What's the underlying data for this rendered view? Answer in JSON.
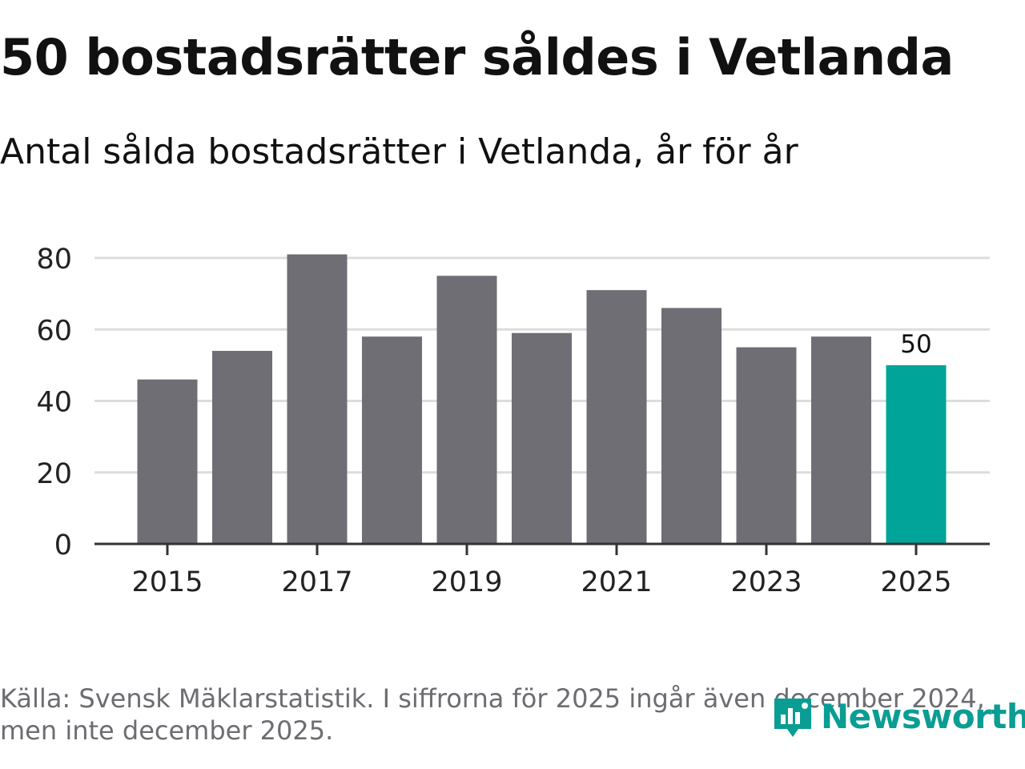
{
  "header": {
    "title": "50 bostadsrätter såldes i Vetlanda",
    "subtitle": "Antal sålda bostadsrätter i Vetlanda, år för år"
  },
  "chart_data": {
    "type": "bar",
    "categories": [
      "2015",
      "2016",
      "2017",
      "2018",
      "2019",
      "2020",
      "2021",
      "2022",
      "2023",
      "2024",
      "2025"
    ],
    "values": [
      46,
      54,
      81,
      58,
      75,
      59,
      71,
      66,
      55,
      58,
      50
    ],
    "x_tick_labels": [
      "2015",
      "2017",
      "2019",
      "2021",
      "2023",
      "2025"
    ],
    "y_ticks": [
      0,
      20,
      40,
      60,
      80
    ],
    "ylim": [
      0,
      80
    ],
    "grid": true,
    "highlight_index": 10,
    "data_labels": [
      {
        "index": 10,
        "text": "50"
      }
    ],
    "colors": {
      "bar": "#6f6e75",
      "highlight": "#00a499",
      "grid": "#dddddd",
      "axis": "#333333"
    },
    "xlabel": "",
    "ylabel": ""
  },
  "footer": {
    "line1": "Källa: Svensk Mäklarstatistik. I siffrorna för 2025 ingår även december 2024,",
    "line2": "men inte december 2025."
  },
  "logo": {
    "text": "Newsworthy",
    "icon": "newsworthy-logo-icon",
    "color": "#0a9d93"
  }
}
